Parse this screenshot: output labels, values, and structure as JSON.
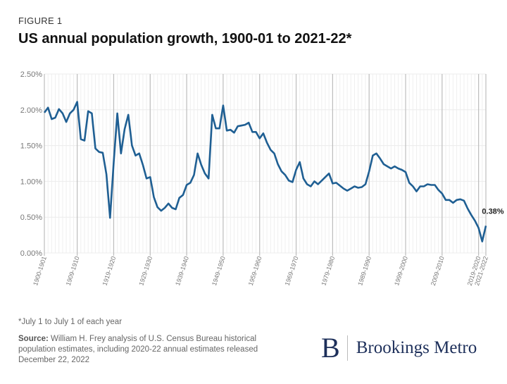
{
  "figure_label": "FIGURE 1",
  "chart_data": {
    "type": "line",
    "title": "US annual population growth, 1900-01 to 2021-22*",
    "xlabel": "",
    "ylabel": "",
    "ylim": [
      0,
      2.5
    ],
    "y_ticks": [
      "0.00%",
      "0.50%",
      "1.00%",
      "1.50%",
      "2.00%",
      "2.50%"
    ],
    "x_tick_labels": [
      "1900-1901",
      "1909-1910",
      "1919-1920",
      "1929-1930",
      "1939-1940",
      "1949-1950",
      "1959-1960",
      "1969-1970",
      "1979-1980",
      "1989-1990",
      "1999-2000",
      "2009-2010",
      "2019-2020",
      "2021-2022"
    ],
    "x_tick_index": [
      0,
      9,
      19,
      29,
      39,
      49,
      59,
      69,
      79,
      89,
      99,
      109,
      119,
      121
    ],
    "x_start": "1900-01",
    "x_end": "2021-22",
    "grid": true,
    "line_color": "#1f5f93",
    "series": [
      {
        "values": [
          1.96,
          2.03,
          1.87,
          1.89,
          2.01,
          1.95,
          1.83,
          1.95,
          2.0,
          2.11,
          1.59,
          1.57,
          1.98,
          1.95,
          1.46,
          1.41,
          1.4,
          1.1,
          0.49,
          1.27,
          1.95,
          1.39,
          1.73,
          1.93,
          1.5,
          1.36,
          1.39,
          1.23,
          1.04,
          1.06,
          0.78,
          0.64,
          0.59,
          0.63,
          0.69,
          0.63,
          0.61,
          0.77,
          0.81,
          0.95,
          0.98,
          1.09,
          1.39,
          1.23,
          1.11,
          1.04,
          1.93,
          1.74,
          1.74,
          2.06,
          1.71,
          1.72,
          1.68,
          1.77,
          1.78,
          1.79,
          1.82,
          1.69,
          1.69,
          1.6,
          1.67,
          1.54,
          1.44,
          1.39,
          1.24,
          1.14,
          1.09,
          1.01,
          0.99,
          1.16,
          1.27,
          1.04,
          0.96,
          0.93,
          1.0,
          0.96,
          1.01,
          1.06,
          1.11,
          0.97,
          0.98,
          0.94,
          0.9,
          0.87,
          0.9,
          0.93,
          0.91,
          0.92,
          0.96,
          1.14,
          1.36,
          1.39,
          1.32,
          1.24,
          1.21,
          1.18,
          1.21,
          1.18,
          1.16,
          1.13,
          0.98,
          0.93,
          0.86,
          0.93,
          0.93,
          0.96,
          0.95,
          0.95,
          0.88,
          0.83,
          0.74,
          0.74,
          0.7,
          0.74,
          0.75,
          0.73,
          0.62,
          0.53,
          0.45,
          0.35,
          0.16,
          0.38
        ]
      }
    ],
    "annotation": "0.38%"
  },
  "footnote": "*July 1 to July 1 of each year",
  "source_label": "Source:",
  "source_text": " William H. Frey analysis of U.S. Census Bureau historical population estimates, including 2020-22 annual estimates released December 22, 2022",
  "logo": {
    "letter": "B",
    "name": "Brookings Metro",
    "color": "#1d2f5a"
  }
}
